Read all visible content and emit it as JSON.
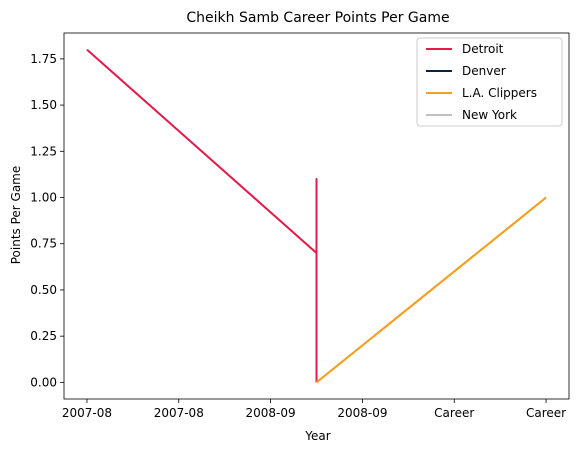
{
  "chart_data": {
    "type": "line",
    "title": "Cheikh Samb Career Points Per Game",
    "xlabel": "Year",
    "ylabel": "Points Per Game",
    "x_tick_labels": [
      "2007-08",
      "2007-08",
      "2008-09",
      "2008-09",
      "Career",
      "Career"
    ],
    "y_ticks": [
      0.0,
      0.25,
      0.5,
      0.75,
      1.0,
      1.25,
      1.5,
      1.75
    ],
    "y_tick_labels": [
      "0.00",
      "0.25",
      "0.50",
      "0.75",
      "1.00",
      "1.25",
      "1.50",
      "1.75"
    ],
    "xlim": [
      -0.25,
      5.25
    ],
    "ylim": [
      -0.09,
      1.89
    ],
    "legend_position": "upper-right",
    "series": [
      {
        "name": "Detroit",
        "color": "#E31B4B",
        "points": [
          [
            0,
            1.8
          ],
          [
            2.5,
            0.7
          ],
          [
            2.5,
            1.1
          ],
          [
            2.5,
            0.7
          ]
        ]
      },
      {
        "name": "Denver",
        "color": "#0D2240",
        "points": []
      },
      {
        "name": "L.A. Clippers",
        "color": "#F59F23",
        "points": [
          [
            2.5,
            0.0
          ],
          [
            5,
            1.0
          ]
        ]
      },
      {
        "name": "New York",
        "color": "#BEC0C2",
        "points": []
      }
    ],
    "extra_segments": [
      {
        "series": "Detroit",
        "points": [
          [
            2.5,
            0.7
          ],
          [
            2.5,
            0.0
          ]
        ]
      }
    ]
  }
}
